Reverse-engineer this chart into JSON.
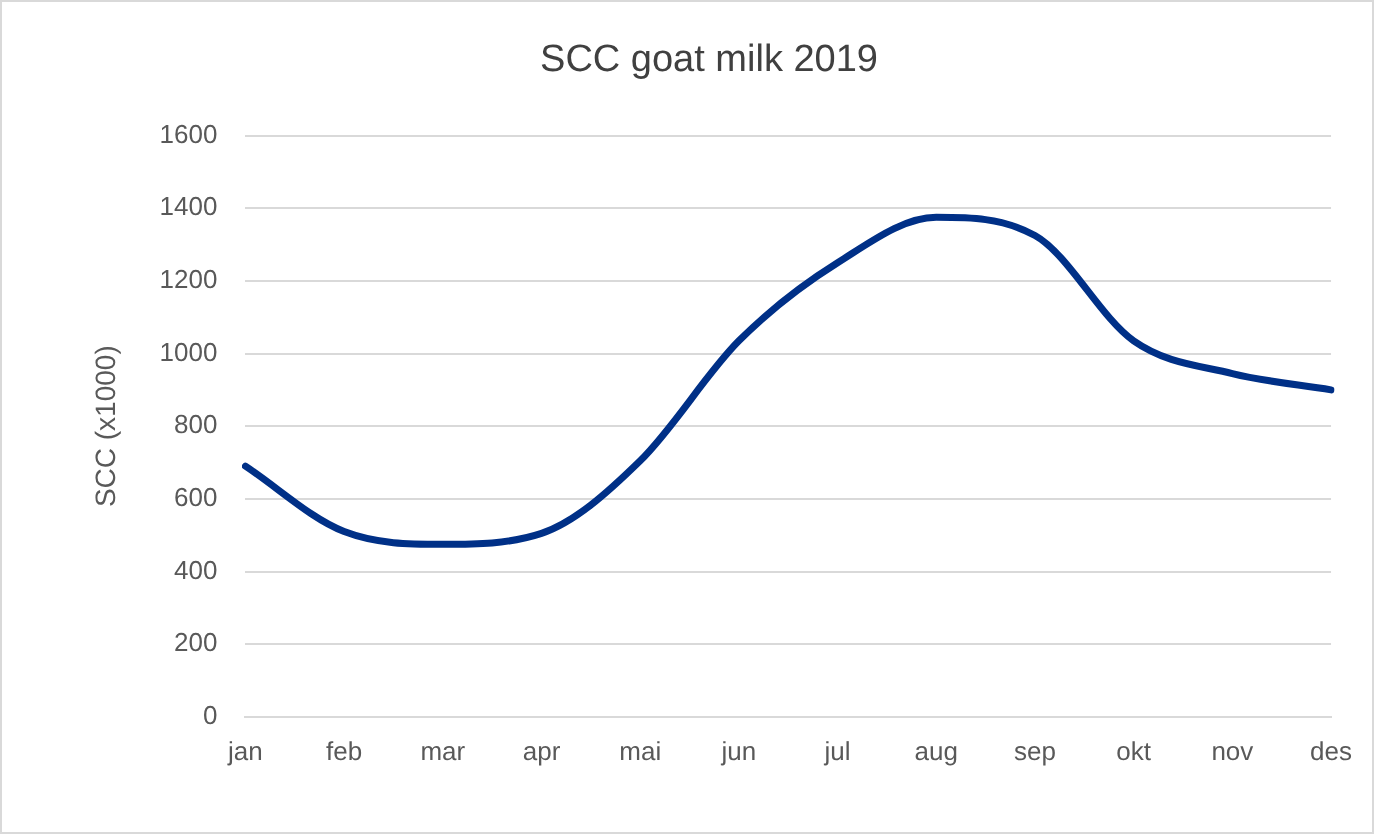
{
  "chart_data": {
    "type": "line",
    "title": "SCC goat milk 2019",
    "ylabel": "SCC (x1000)",
    "categories": [
      "jan",
      "feb",
      "mar",
      "apr",
      "mai",
      "jun",
      "jul",
      "aug",
      "sep",
      "okt",
      "nov",
      "des"
    ],
    "series": [
      {
        "color": "#003087",
        "values": [
          690,
          510,
          475,
          505,
          705,
          1035,
          1250,
          1375,
          1325,
          1035,
          945,
          900
        ]
      }
    ],
    "ylim": [
      0,
      1600
    ],
    "yticks": [
      0,
      200,
      400,
      600,
      800,
      1000,
      1200,
      1400,
      1600
    ],
    "grid": "y",
    "legend": false,
    "marker": "none",
    "line_style": "solid"
  }
}
